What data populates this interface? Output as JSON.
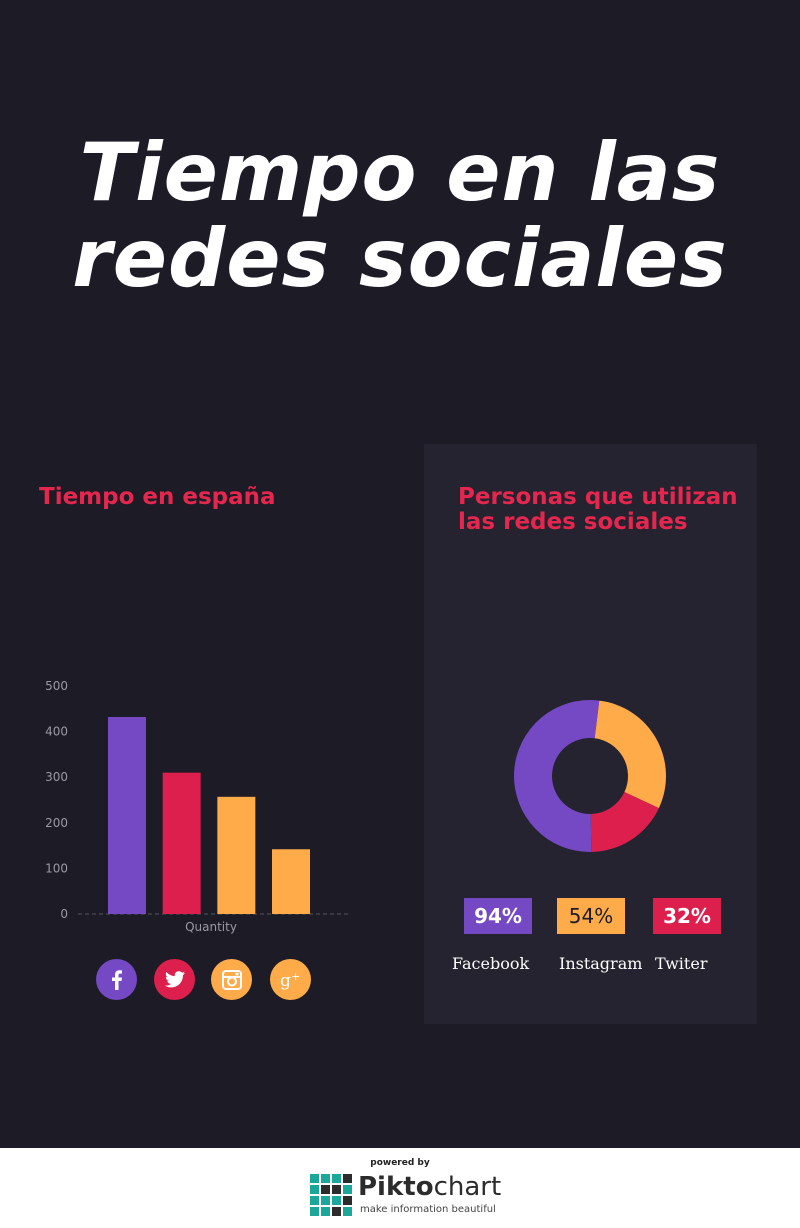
{
  "title": {
    "line1": "Tiempo en las",
    "line2": "redes sociales"
  },
  "colors": {
    "background": "#1c1b26",
    "panel": "#24232f",
    "accent": "#e5264e",
    "purple": "#7549c4",
    "red": "#dc1f4c",
    "orange": "#ffab4a"
  },
  "chart_data": [
    {
      "type": "bar",
      "title": "Tiempo en españa",
      "categories": [
        "",
        "",
        "",
        ""
      ],
      "values": [
        432,
        310,
        257,
        142
      ],
      "bar_colors": [
        "#7549c4",
        "#dc1f4c",
        "#ffab4a",
        "#ffab4a"
      ],
      "xlabel": "Quantity",
      "ylabel": "",
      "yticks": [
        0,
        100,
        200,
        300,
        400,
        500
      ],
      "ylim": [
        0,
        500
      ],
      "grid": false
    },
    {
      "type": "pie",
      "title": "Personas que utilizan las redes sociales",
      "labels": [
        "Facebook",
        "Instagram",
        "Twiter"
      ],
      "values": [
        94,
        54,
        32
      ],
      "display_values": [
        "94%",
        "54%",
        "32%"
      ],
      "colors": [
        "#7549c4",
        "#ffab4a",
        "#dc1f4c"
      ],
      "donut": true
    }
  ],
  "social_icons": [
    "facebook-icon",
    "twitter-icon",
    "instagram-icon",
    "google-plus-icon"
  ],
  "footer": {
    "powered_by": "powered by",
    "brand_bold": "Pikto",
    "brand_rest": "chart",
    "tagline": "make information beautiful"
  }
}
